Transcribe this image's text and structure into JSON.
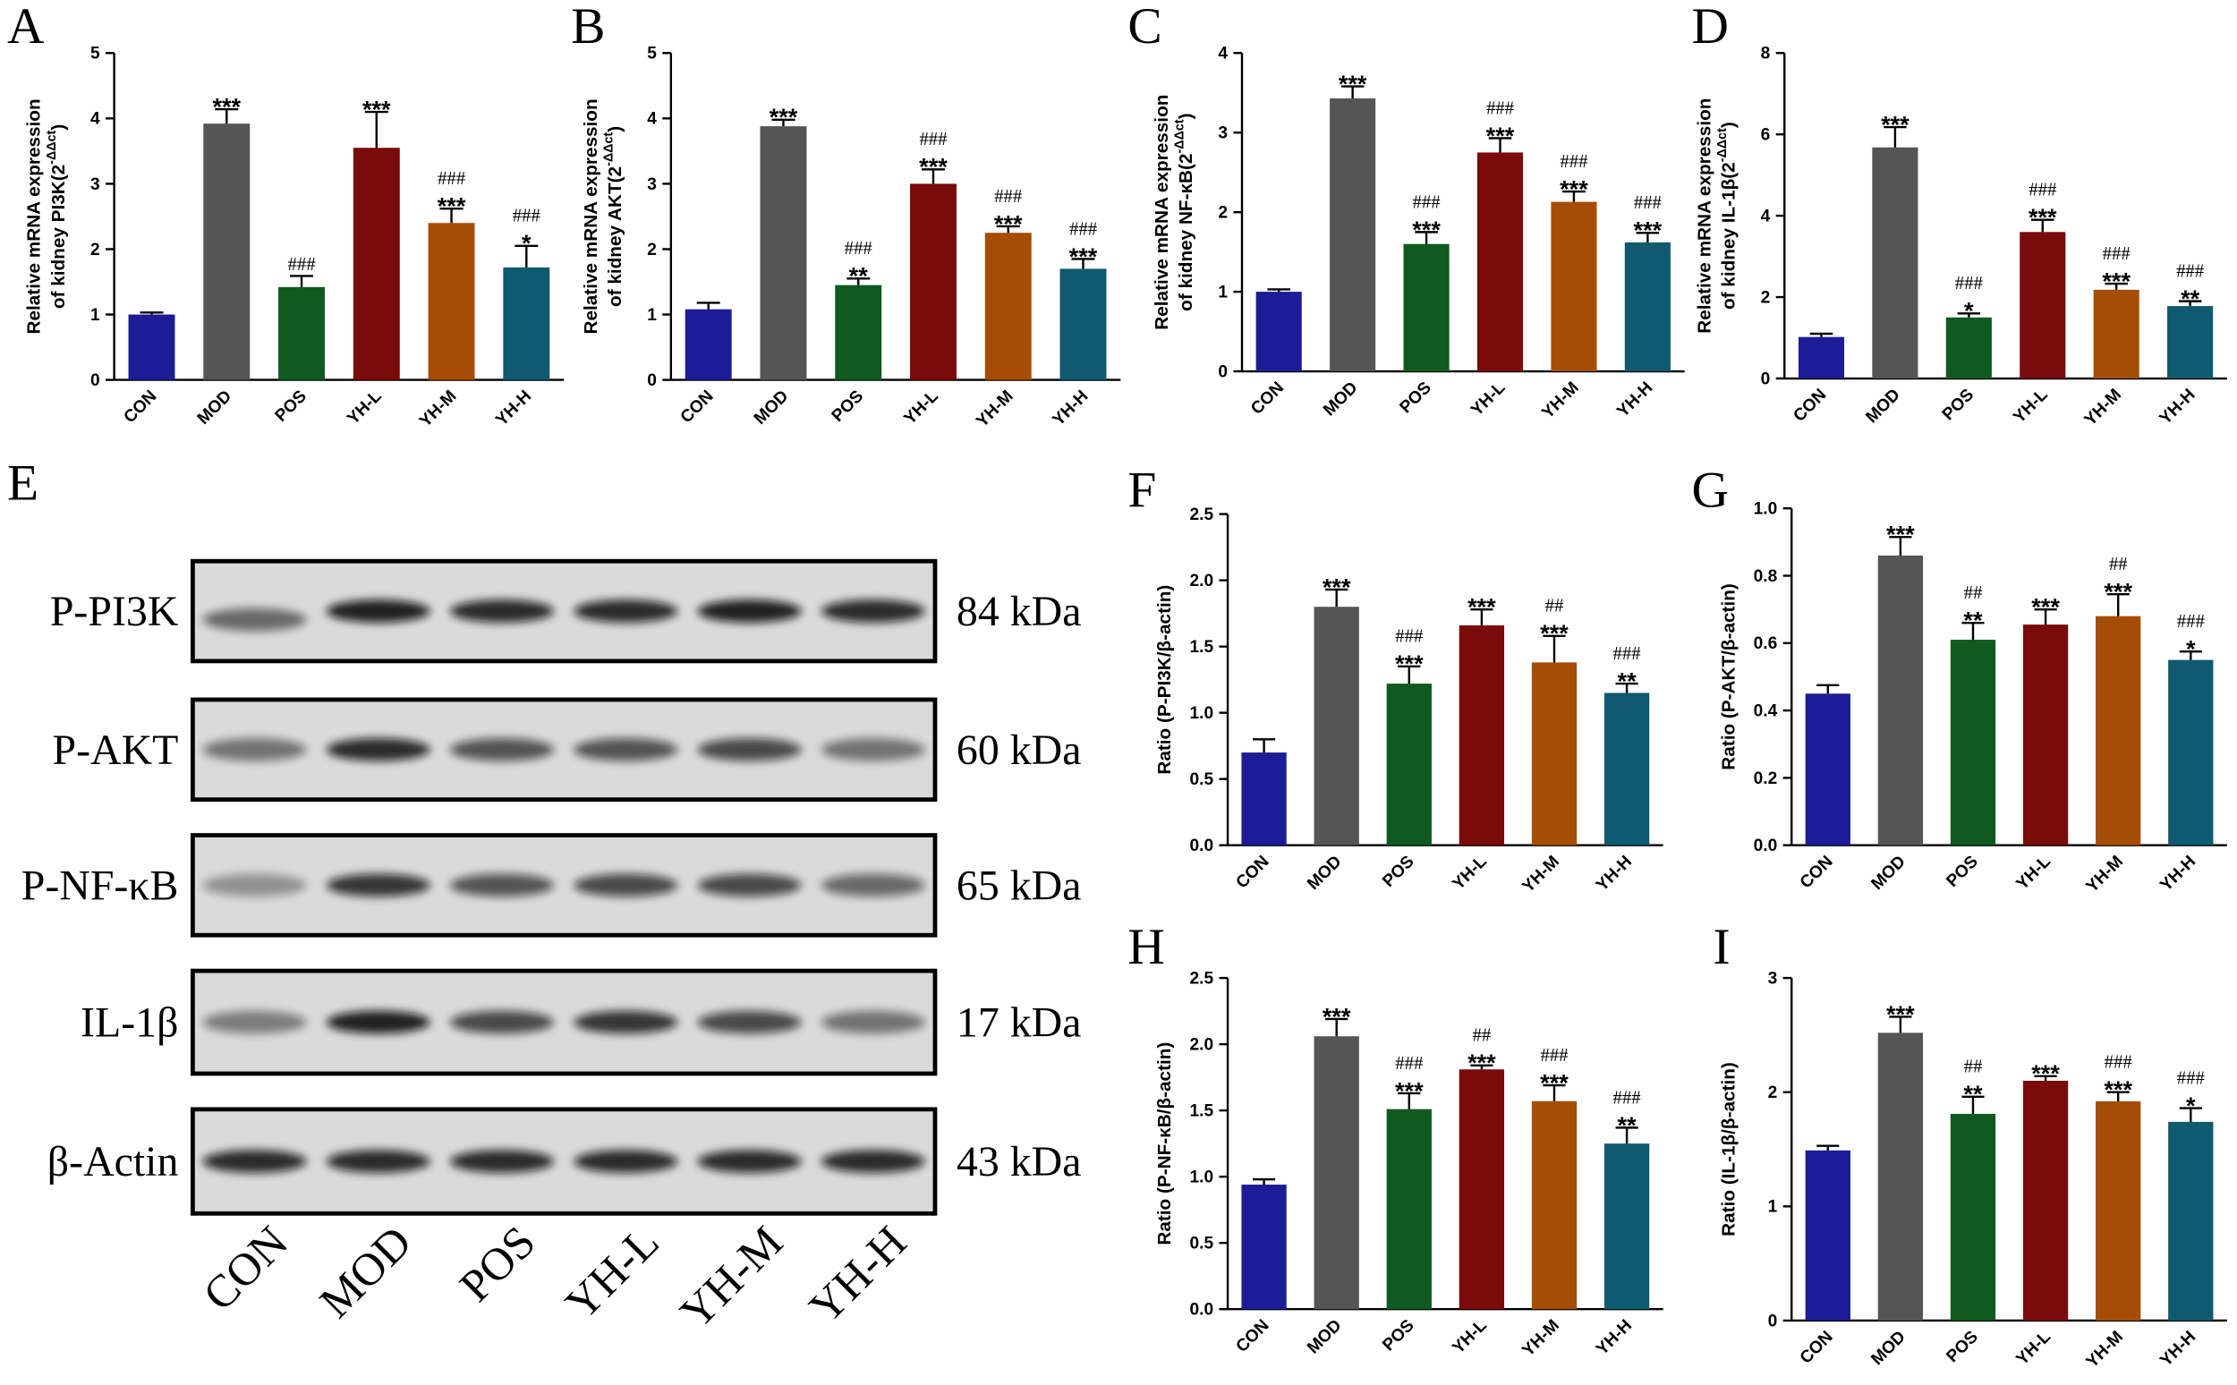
{
  "chart_data": [
    {
      "type": "bar",
      "panel": "A",
      "y_label": [
        "Relative mRNA expression",
        "of kidney PI3K(2"
      ],
      "y_label_sup": "-ΔΔct",
      "y_label_end": ")",
      "categories": [
        "CON",
        "MOD",
        "POS",
        "YH-L",
        "YH-M",
        "YH-H"
      ],
      "values": [
        1.0,
        3.92,
        1.42,
        3.55,
        2.4,
        1.72
      ],
      "errors": [
        0.03,
        0.22,
        0.17,
        0.55,
        0.22,
        0.33
      ],
      "colors": [
        "#1c1c96",
        "#555555",
        "#0f5a1e",
        "#7a0b0b",
        "#a54d05",
        "#0f5a70"
      ],
      "stars": [
        null,
        "***",
        null,
        "***",
        "***",
        "*"
      ],
      "hashes": [
        null,
        null,
        "###",
        null,
        "###",
        "###"
      ],
      "ylim": [
        0,
        5
      ],
      "yticks": [
        0,
        1,
        2,
        3,
        4,
        5
      ]
    },
    {
      "type": "bar",
      "panel": "B",
      "y_label": [
        "Relative mRNA expression",
        "of kidney AKT(2"
      ],
      "y_label_sup": "-ΔΔct",
      "y_label_end": ")",
      "categories": [
        "CON",
        "MOD",
        "POS",
        "YH-L",
        "YH-M",
        "YH-H"
      ],
      "values": [
        1.08,
        3.88,
        1.45,
        3.0,
        2.25,
        1.7
      ],
      "errors": [
        0.1,
        0.1,
        0.1,
        0.22,
        0.1,
        0.15
      ],
      "colors": [
        "#1c1c96",
        "#555555",
        "#0f5a1e",
        "#7a0b0b",
        "#a54d05",
        "#0f5a70"
      ],
      "stars": [
        null,
        "***",
        "**",
        "***",
        "***",
        "***"
      ],
      "hashes": [
        null,
        null,
        "###",
        "###",
        "###",
        "###"
      ],
      "ylim": [
        0,
        5
      ],
      "yticks": [
        0,
        1,
        2,
        3,
        4,
        5
      ]
    },
    {
      "type": "bar",
      "panel": "C",
      "y_label": [
        "Relative mRNA expression",
        "of kidney NF-κB(2"
      ],
      "y_label_sup": "-ΔΔct",
      "y_label_end": ")",
      "categories": [
        "CON",
        "MOD",
        "POS",
        "YH-L",
        "YH-M",
        "YH-H"
      ],
      "values": [
        1.0,
        3.43,
        1.6,
        2.75,
        2.13,
        1.62
      ],
      "errors": [
        0.03,
        0.15,
        0.15,
        0.18,
        0.13,
        0.12
      ],
      "colors": [
        "#1c1c96",
        "#555555",
        "#0f5a1e",
        "#7a0b0b",
        "#a54d05",
        "#0f5a70"
      ],
      "stars": [
        null,
        "***",
        "***",
        "***",
        "***",
        "***"
      ],
      "hashes": [
        null,
        null,
        "###",
        "###",
        "###",
        "###"
      ],
      "ylim": [
        0,
        4
      ],
      "yticks": [
        0,
        1,
        2,
        3,
        4
      ]
    },
    {
      "type": "bar",
      "panel": "D",
      "y_label": [
        "Relative mRNA expression",
        "of kidney IL-1β(2"
      ],
      "y_label_sup": "-ΔΔct",
      "y_label_end": ")",
      "categories": [
        "CON",
        "MOD",
        "POS",
        "YH-L",
        "YH-M",
        "YH-H"
      ],
      "values": [
        1.02,
        5.68,
        1.5,
        3.6,
        2.18,
        1.78
      ],
      "errors": [
        0.08,
        0.5,
        0.1,
        0.3,
        0.15,
        0.12
      ],
      "colors": [
        "#1c1c96",
        "#555555",
        "#0f5a1e",
        "#7a0b0b",
        "#a54d05",
        "#0f5a70"
      ],
      "stars": [
        null,
        "***",
        "*",
        "***",
        "***",
        "**"
      ],
      "hashes": [
        null,
        null,
        "###",
        "###",
        "###",
        "###"
      ],
      "ylim": [
        0,
        8
      ],
      "yticks": [
        0,
        2,
        4,
        6,
        8
      ]
    },
    {
      "type": "bar",
      "panel": "F",
      "y_label": [
        "Ratio (P-PI3K/β-actin)"
      ],
      "categories": [
        "CON",
        "MOD",
        "POS",
        "YH-L",
        "YH-M",
        "YH-H"
      ],
      "values": [
        0.7,
        1.8,
        1.22,
        1.66,
        1.38,
        1.15
      ],
      "errors": [
        0.1,
        0.13,
        0.13,
        0.12,
        0.2,
        0.07
      ],
      "colors": [
        "#1c1c96",
        "#555555",
        "#0f5a1e",
        "#7a0b0b",
        "#a54d05",
        "#0f5a70"
      ],
      "stars": [
        null,
        "***",
        "***",
        "***",
        "***",
        "**"
      ],
      "hashes": [
        null,
        null,
        "###",
        null,
        "##",
        "###"
      ],
      "ylim": [
        0,
        2.5
      ],
      "yticks": [
        {
          "value": 0,
          "label": "0.0"
        },
        0.5,
        {
          "value": 1,
          "label": "1.0"
        },
        1.5,
        {
          "value": 2,
          "label": "2.0"
        },
        2.5
      ]
    },
    {
      "type": "bar",
      "panel": "G",
      "y_label": [
        "Ratio (P-AKT/β-actin)"
      ],
      "categories": [
        "CON",
        "MOD",
        "POS",
        "YH-L",
        "YH-M",
        "YH-H"
      ],
      "values": [
        0.45,
        0.86,
        0.61,
        0.655,
        0.68,
        0.55
      ],
      "errors": [
        0.025,
        0.055,
        0.05,
        0.045,
        0.065,
        0.025
      ],
      "colors": [
        "#1c1c96",
        "#555555",
        "#0f5a1e",
        "#7a0b0b",
        "#a54d05",
        "#0f5a70"
      ],
      "stars": [
        null,
        "***",
        "**",
        "***",
        "***",
        "*"
      ],
      "hashes": [
        null,
        null,
        "##",
        null,
        "##",
        "###"
      ],
      "ylim": [
        0,
        1
      ],
      "yticks": [
        {
          "value": 0,
          "label": "0.0"
        },
        0.2,
        0.4,
        0.6,
        0.8,
        {
          "value": 1,
          "label": "1.0"
        }
      ]
    },
    {
      "type": "bar",
      "panel": "H",
      "y_label": [
        "Ratio (P-NF-κB/β-actin)"
      ],
      "categories": [
        "CON",
        "MOD",
        "POS",
        "YH-L",
        "YH-M",
        "YH-H"
      ],
      "values": [
        0.94,
        2.06,
        1.51,
        1.81,
        1.57,
        1.25
      ],
      "errors": [
        0.04,
        0.13,
        0.12,
        0.03,
        0.12,
        0.12
      ],
      "colors": [
        "#1c1c96",
        "#555555",
        "#0f5a1e",
        "#7a0b0b",
        "#a54d05",
        "#0f5a70"
      ],
      "stars": [
        null,
        "***",
        "***",
        "***",
        "***",
        "**"
      ],
      "hashes": [
        null,
        null,
        "###",
        "##",
        "###",
        "###"
      ],
      "ylim": [
        0,
        2.5
      ],
      "yticks": [
        {
          "value": 0,
          "label": "0.0"
        },
        0.5,
        {
          "value": 1,
          "label": "1.0"
        },
        1.5,
        {
          "value": 2,
          "label": "2.0"
        },
        2.5
      ]
    },
    {
      "type": "bar",
      "panel": "I",
      "y_label": [
        "Ratio (IL-1β/β-actin)"
      ],
      "categories": [
        "CON",
        "MOD",
        "POS",
        "YH-L",
        "YH-M",
        "YH-H"
      ],
      "values": [
        1.49,
        2.52,
        1.81,
        2.1,
        1.92,
        1.74
      ],
      "errors": [
        0.04,
        0.14,
        0.15,
        0.04,
        0.08,
        0.12
      ],
      "colors": [
        "#1c1c96",
        "#555555",
        "#0f5a1e",
        "#7a0b0b",
        "#a54d05",
        "#0f5a70"
      ],
      "stars": [
        null,
        "***",
        "**",
        "***",
        "***",
        "*"
      ],
      "hashes": [
        null,
        null,
        "##",
        null,
        "###",
        "###"
      ],
      "ylim": [
        0,
        3
      ],
      "yticks": [
        0,
        1,
        2,
        3
      ]
    }
  ],
  "blot": {
    "panel": "E",
    "proteins": [
      "P-PI3K",
      "P-AKT",
      "P-NF-κB",
      "IL-1β",
      "β-Actin"
    ],
    "sizes": [
      "84 kDa",
      "60 kDa",
      "65 kDa",
      "17 kDa",
      "43 kDa"
    ],
    "groups": [
      "CON",
      "MOD",
      "POS",
      "YH-L",
      "YH-M",
      "YH-H"
    ]
  }
}
